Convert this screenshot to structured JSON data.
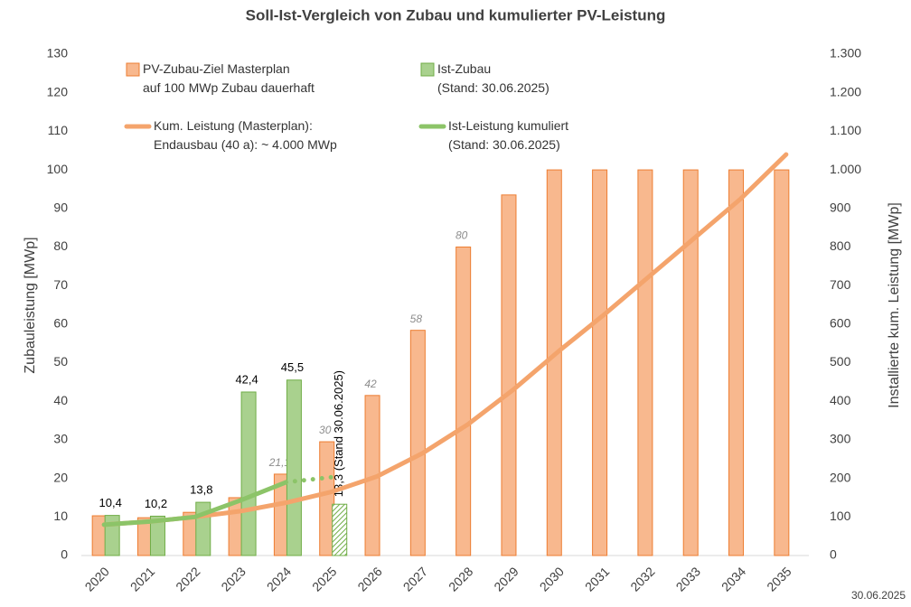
{
  "chart_data": {
    "type": "bar",
    "title": "Soll-Ist-Vergleich  von Zubau und kumulierter  PV-Leistung",
    "y_label": "Zubauleistung [MWp]",
    "y2_label": "Installierte kum. Leistung [MWp]",
    "footer": "30.06.2025",
    "categories": [
      "2020",
      "2021",
      "2022",
      "2023",
      "2024",
      "2025",
      "2026",
      "2027",
      "2028",
      "2029",
      "2030",
      "2031",
      "2032",
      "2033",
      "2034",
      "2035"
    ],
    "ylim": [
      0,
      130
    ],
    "yticks": [
      0,
      10,
      20,
      30,
      40,
      50,
      60,
      70,
      80,
      90,
      100,
      110,
      120,
      130
    ],
    "y2lim": [
      0,
      1300
    ],
    "y2ticks": [
      0,
      100,
      200,
      300,
      400,
      500,
      600,
      700,
      800,
      900,
      {
        "value": 1000,
        "label": "1.000"
      },
      {
        "value": 1100,
        "label": "1.100"
      },
      {
        "value": 1200,
        "label": "1.200"
      },
      {
        "value": 1300,
        "label": "1.300"
      }
    ],
    "grid": false,
    "series": [
      {
        "name": "PV-Zubau-Ziel Masterplan\nauf 100 MWp Zubau dauerhaft",
        "type": "bar",
        "color": "#f8b88e",
        "edge": "#ed7d31",
        "values": [
          10.3,
          9.8,
          11.2,
          15,
          21.1,
          29.5,
          41.5,
          58.4,
          80,
          93.5,
          100,
          100,
          100,
          100,
          100,
          100
        ],
        "value_labels": [
          null,
          null,
          null,
          null,
          "21,1",
          "30",
          "42",
          "58",
          "80",
          null,
          null,
          null,
          null,
          null,
          null,
          null
        ]
      },
      {
        "name": "Ist-Zubau\n(Stand: 30.06.2025)",
        "type": "bar",
        "color": "#a9d18e",
        "edge": "#70ad47",
        "values": [
          10.4,
          10.2,
          13.8,
          42.4,
          45.5,
          13.3,
          null,
          null,
          null,
          null,
          null,
          null,
          null,
          null,
          null,
          null
        ],
        "value_labels": [
          "10,4",
          "10,2",
          "13,8",
          "42,4",
          "45,5",
          "13,3 (Stand 30.06.2025)",
          null,
          null,
          null,
          null,
          null,
          null,
          null,
          null,
          null,
          null
        ],
        "hatched": [
          false,
          false,
          false,
          false,
          false,
          true,
          false,
          false,
          false,
          false,
          false,
          false,
          false,
          false,
          false,
          false
        ]
      },
      {
        "name": "Kum. Leistung (Masterplan):\nEndausbau (40 a): ~ 4.000 MWp",
        "type": "line",
        "axis": "y2",
        "color": "#f4a46c",
        "values": [
          80,
          88,
          100,
          115,
          137,
          165,
          205,
          265,
          340,
          430,
          530,
          625,
          725,
          825,
          925,
          1040
        ]
      },
      {
        "name": "Ist-Leistung kumuliert\n(Stand: 30.06.2025)",
        "type": "line",
        "axis": "y2",
        "color": "#8cc468",
        "values": [
          80,
          88,
          100,
          143,
          190,
          203,
          null,
          null,
          null,
          null,
          null,
          null,
          null,
          null,
          null,
          null
        ],
        "dotted_from": 4
      }
    ]
  }
}
